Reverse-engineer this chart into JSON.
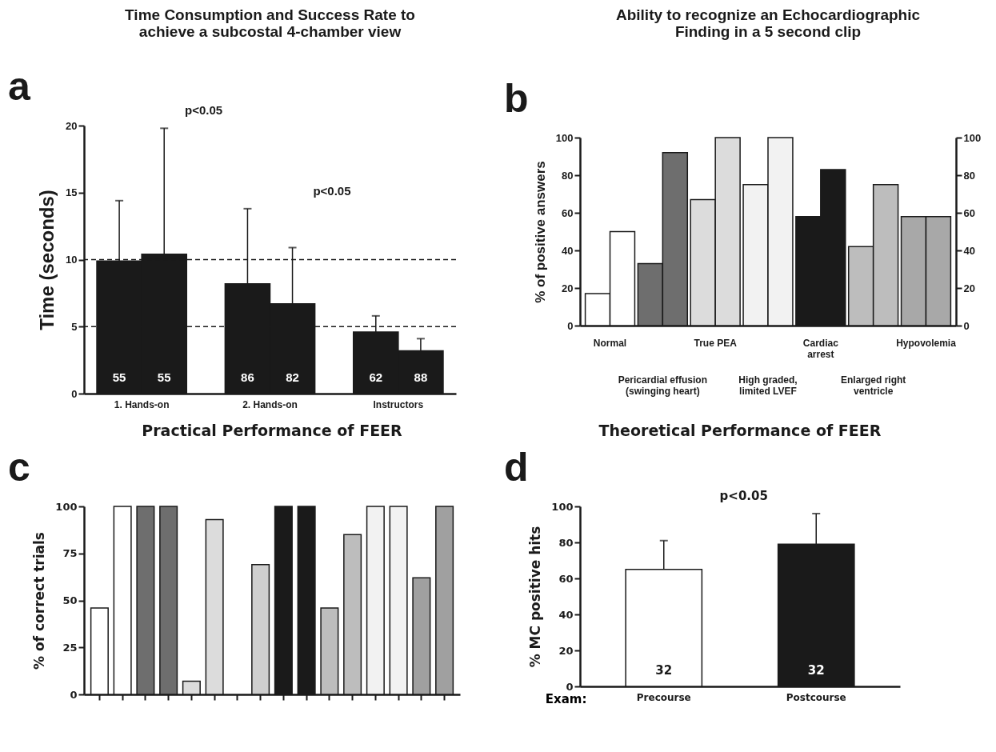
{
  "chart_data": [
    {
      "type": "bar",
      "title": "Time Consumption and Success Rate to achieve a subcostal 4-chamber view",
      "ylabel": "Time (seconds)",
      "categories": [
        "1. Hands-on",
        "2. Hands-on",
        "Instructors"
      ],
      "series": [
        {
          "color": "#1a1a1a",
          "values": [
            9.9,
            8.2,
            4.6
          ],
          "errors": [
            [
              9.9,
              14.4
            ],
            [
              8.2,
              13.8
            ],
            [
              4.6,
              5.8
            ]
          ]
        },
        {
          "color": "#1a1a1a",
          "values": [
            10.4,
            6.7,
            3.2
          ],
          "errors": [
            [
              10.4,
              19.8
            ],
            [
              6.7,
              10.9
            ],
            [
              3.2,
              4.1
            ]
          ]
        }
      ],
      "ylim": [
        0,
        20
      ],
      "yticks": [
        0,
        5,
        10,
        15,
        20
      ],
      "ref_lines": [
        {
          "axis": "y",
          "value": 10,
          "line_style": "dashed"
        },
        {
          "axis": "y",
          "value": 5,
          "line_style": "dashed"
        }
      ],
      "annotations": [
        "a",
        "p<0.05",
        "p<0.05",
        "55",
        "86",
        "62",
        "55",
        "82",
        "88"
      ]
    },
    {
      "type": "bar",
      "title": "Ability to recognize an Echocardiographic Finding in a 5 second clip",
      "ylabel": "% of positive answers",
      "categories": [
        "Normal",
        "Pericardial effusion (swinging heart)",
        "True PEA",
        "High graded, limited LVEF",
        "Cardiac arrest",
        "Enlarged right ventricle",
        "Hypovolemia"
      ],
      "series": [
        {
          "colors": [
            "#ffffff",
            "#6e6e6e",
            "#dcdcdc",
            "#f2f2f2",
            "#1a1a1a",
            "#bdbdbd",
            "#a8a8a8"
          ],
          "values": [
            17,
            33,
            67,
            75,
            58,
            42,
            58
          ]
        },
        {
          "colors": [
            "#ffffff",
            "#6e6e6e",
            "#dcdcdc",
            "#f2f2f2",
            "#1a1a1a",
            "#bdbdbd",
            "#a8a8a8"
          ],
          "values": [
            50,
            92,
            100,
            100,
            83,
            75,
            58
          ]
        }
      ],
      "ylim": [
        0,
        100
      ],
      "yticks": [
        0,
        20,
        40,
        60,
        80,
        100
      ],
      "y2lim": [
        0,
        100
      ],
      "y2ticks": [
        0,
        20,
        40,
        60,
        80,
        100
      ],
      "annotations": [
        "b"
      ]
    },
    {
      "type": "bar",
      "title": "Practical Performance of FEER",
      "ylabel": "% of correct trials",
      "categories": [
        null,
        null,
        null,
        null,
        null,
        null,
        null,
        null,
        null,
        null,
        null,
        null,
        null,
        null,
        null,
        null
      ],
      "values": [
        46,
        100,
        100,
        100,
        7,
        93,
        null,
        69,
        100,
        100,
        46,
        85,
        100,
        100,
        62,
        100
      ],
      "colors": [
        "#ffffff",
        "#ffffff",
        "#6e6e6e",
        "#6e6e6e",
        "#dcdcdc",
        "#dcdcdc",
        null,
        "#cfcfcf",
        "#1a1a1a",
        "#1a1a1a",
        "#bdbdbd",
        "#bdbdbd",
        "#f2f2f2",
        "#f2f2f2",
        "#a0a0a0",
        "#a0a0a0"
      ],
      "ylim": [
        0,
        100
      ],
      "yticks": [
        0,
        25,
        50,
        75,
        100
      ],
      "tick_labels": "y",
      "annotations": [
        "c"
      ]
    },
    {
      "type": "bar",
      "title": "Theoretical Performance of FEER",
      "xlabel": "Exam:",
      "ylabel": "% MC positive hits",
      "categories": [
        "Precourse",
        "Postcourse"
      ],
      "values": [
        65,
        79
      ],
      "colors": [
        "#ffffff",
        "#1a1a1a"
      ],
      "errors": [
        [
          65,
          81
        ],
        [
          79,
          96
        ]
      ],
      "ylim": [
        0,
        100
      ],
      "yticks": [
        0,
        20,
        40,
        60,
        80,
        100
      ],
      "annotations": [
        "d",
        "p<0.05",
        "32",
        "32"
      ]
    }
  ]
}
